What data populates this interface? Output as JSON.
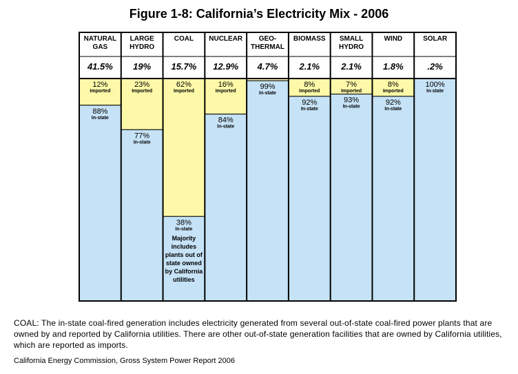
{
  "chart_data": {
    "type": "stacked-percent-column",
    "title": "Figure 1-8: California’s Electricity Mix - 2006",
    "categories": [
      "NATURAL GAS",
      "LARGE HYDRO",
      "COAL",
      "NUCLEAR",
      "GEO-THERMAL",
      "BIOMASS",
      "SMALL HYDRO",
      "WIND",
      "SOLAR"
    ],
    "shares": [
      41.5,
      19,
      15.7,
      12.9,
      4.7,
      2.1,
      2.1,
      1.8,
      0.2
    ],
    "share_labels": [
      "41.5%",
      "19%",
      "15.7%",
      "12.9%",
      "4.7%",
      "2.1%",
      "2.1%",
      "1.8%",
      ".2%"
    ],
    "ylim": [
      0,
      100
    ],
    "series": [
      {
        "name": "Imported",
        "color": "#fdf9a8",
        "values": [
          12,
          23,
          62,
          16,
          1,
          8,
          7,
          8,
          0
        ],
        "value_labels": [
          "12%",
          "23%",
          "62%",
          "16%",
          null,
          "8%",
          "7%",
          "8%",
          null
        ]
      },
      {
        "name": "In-state",
        "color": "#c6e2f6",
        "values": [
          88,
          77,
          38,
          84,
          99,
          92,
          93,
          92,
          100
        ],
        "value_labels": [
          "88%",
          "77%",
          "38%",
          "84%",
          "99%",
          "92%",
          "93%",
          "92%",
          "100%"
        ]
      }
    ],
    "annotation": "Majority includes plants out of state owned by California utilities",
    "footnote": "COAL: The in-state coal-fired generation includes electricity generated from several out-of-state coal-fired power plants that are owned by and reported by California utilities. There are other out-of-state generation facilities that are owned by California utilities, which are reported as imports.",
    "source": "California Energy Commission, Gross System Power Report 2006"
  }
}
